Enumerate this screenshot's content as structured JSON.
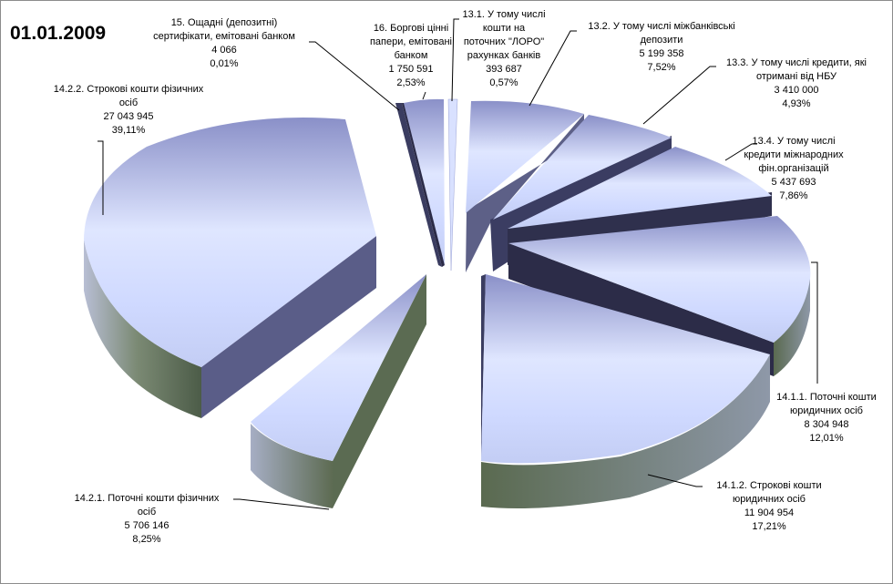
{
  "chart_data": {
    "type": "pie",
    "variant": "3d-exploded",
    "title": "01.01.2009",
    "legend": "none",
    "slices": [
      {
        "id": "s16",
        "name_lines": [
          "16. Боргові цінні",
          "папери, емітовані",
          "банком"
        ],
        "value": "1 750 591",
        "percent": "2,53%",
        "num": 1750591
      },
      {
        "id": "s13_1",
        "name_lines": [
          "13.1. У тому числі",
          "кошти на",
          "поточних \"ЛОРО\"",
          "рахунках банків"
        ],
        "value": "393 687",
        "percent": "0,57%",
        "num": 393687
      },
      {
        "id": "s13_2",
        "name_lines": [
          "13.2. У тому числі міжбанківські",
          "депозити"
        ],
        "value": "5 199 358",
        "percent": "7,52%",
        "num": 5199358
      },
      {
        "id": "s13_3",
        "name_lines": [
          "13.3. У тому числі кредити, які",
          "отримані від НБУ"
        ],
        "value": "3 410 000",
        "percent": "4,93%",
        "num": 3410000
      },
      {
        "id": "s13_4",
        "name_lines": [
          "13.4. У тому числі",
          "кредити міжнародних",
          "фін.організацій"
        ],
        "value": "5 437 693",
        "percent": "7,86%",
        "num": 5437693
      },
      {
        "id": "s14_1_1",
        "name_lines": [
          "14.1.1. Поточні кошти",
          "юридичних осіб"
        ],
        "value": "8 304 948",
        "percent": "12,01%",
        "num": 8304948
      },
      {
        "id": "s14_1_2",
        "name_lines": [
          "14.1.2. Строкові кошти",
          "юридичних осіб"
        ],
        "value": "11 904 954",
        "percent": "17,21%",
        "num": 11904954
      },
      {
        "id": "s14_2_1",
        "name_lines": [
          "14.2.1. Поточні кошти фізичних",
          "осіб"
        ],
        "value": "5 706 146",
        "percent": "8,25%",
        "num": 5706146
      },
      {
        "id": "s14_2_2",
        "name_lines": [
          "14.2.2. Строкові кошти фізичних",
          "осіб"
        ],
        "value": "27 043 945",
        "percent": "39,11%",
        "num": 27043945
      },
      {
        "id": "s15",
        "name_lines": [
          "15. Ощадні (депозитні)",
          "сертифікати, емітовані банком"
        ],
        "value": "4 066",
        "percent": "0,01%",
        "num": 4066
      }
    ]
  },
  "colors": {
    "top_light": "#dbe3ff",
    "top_dark": "#7f86c2",
    "side_dark": "#2c2c48",
    "side_mid": "#5a5d88",
    "side_green": "#4e5e48",
    "side_light": "#aab0c8",
    "leader": "#000000"
  }
}
